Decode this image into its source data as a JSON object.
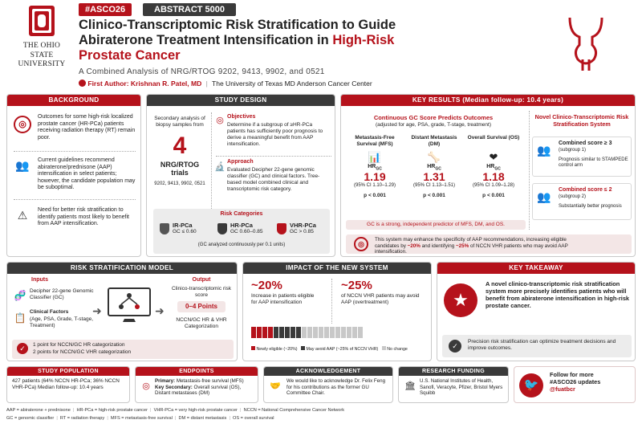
{
  "logo": {
    "line1": "THE OHIO STATE",
    "line2": "UNIVERSITY"
  },
  "tags": {
    "conference": "#ASCO26",
    "abstract": "ABSTRACT 5000"
  },
  "title": {
    "part1": "Clinico-Transcriptomic Risk Stratification to Guide",
    "part2a": "Abiraterone Treatment Intensification in ",
    "part2b": "High-Risk",
    "part3": "Prostate Cancer"
  },
  "subtitle": "A Combined Analysis of NRG/RTOG 9202, 9413, 9902, and 0521",
  "author": {
    "label": "First Author:",
    "name": "Krishnan R. Patel, MD",
    "affiliation": "The University of Texas MD Anderson Cancer Center"
  },
  "background": {
    "header": "BACKGROUND",
    "items": [
      "Outcomes for some high-risk localized prostate cancer (HR-PCa) patients receiving radiation therapy (RT) remain poor.",
      "Current guidelines recommend abiraterone/prednisone (AAP) intensification in select patients; however, the candidate population may be suboptimal.",
      "Need for better risk stratification to identify patients most likely to benefit from AAP intensification."
    ]
  },
  "study_design": {
    "header": "STUDY DESIGN",
    "intro": "Secondary analysis of biopsy samples from",
    "big_number": "4",
    "trials_label": "NRG/RTOG trials",
    "trials": "9202, 9413, 9902, 0521",
    "objectives_title": "Objectives",
    "objectives_text": "Determine if a subgroup of ≥HR-PCa patients has sufficiently poor prognosis to derive a meaningful benefit from AAP intensification.",
    "approach_title": "Approach",
    "approach_text": "Evaluated Decipher 22-gene genomic classifier (GC) and clinical factors. Tree-based model combined clinical and transcriptomic risk category.",
    "risk_title": "Risk Categories",
    "risk": [
      {
        "label": "IR-PCa",
        "range": "GC ≤ 0.60"
      },
      {
        "label": "HR-PCa",
        "range": "GC 0.60–0.85"
      },
      {
        "label": "VHR-PCa",
        "range": "GC > 0.85"
      }
    ],
    "risk_note": "(GC analyzed continuously per 0.1 units)"
  },
  "key_results": {
    "header": "KEY RESULTS (Median follow-up: 10.4 years)",
    "gc_title": "Continuous GC Score Predicts Outcomes",
    "gc_subtitle": "(adjusted for age, PSA, grade, T-stage, treatment)",
    "endpoints": [
      {
        "name": "Metastasis-Free Survival (MFS)",
        "hr": "1.19",
        "ci": "(95% CI 1.10–1.29)",
        "p": "p < 0.001"
      },
      {
        "name": "Distant Metastasis (DM)",
        "hr": "1.31",
        "ci": "(95% CI 1.13–1.51)",
        "p": "p < 0.001"
      },
      {
        "name": "Overall Survival (OS)",
        "hr": "1.18",
        "ci": "(95% CI 1.09–1.28)",
        "p": "p < 0.001"
      }
    ],
    "hr_label": "HR",
    "hr_sub": "GC",
    "gc_note": "GC is a strong, independent predictor of MFS, DM, and OS.",
    "novel_title": "Novel Clinico-Transcriptomic Risk Stratification System",
    "subgroup1_title": "Combined score ≥ 3",
    "subgroup1_sub": "(subgroup 1)",
    "subgroup1_text": "Prognosis similar to STAMPEDE control arm",
    "subgroup2_title": "Combined score ≤ 2",
    "subgroup2_sub": "(subgroup 2)",
    "subgroup2_text": "Substantially better prognosis",
    "system_note_a": "This system may enhance the specificity of AAP recommendations, increasing eligible candidates by ",
    "system_note_b": "~20%",
    "system_note_c": " and identifying ",
    "system_note_d": "~25%",
    "system_note_e": " of NCCN VHR patients who may avoid AAP intensification."
  },
  "risk_model": {
    "header": "RISK STRATIFICATION MODEL",
    "inputs_title": "Inputs",
    "input1": "Decipher 22-gene Genomic Classifier (GC)",
    "input2_title": "Clinical Factors",
    "input2_text": "(Age, PSA, Grade, T-stage, Treatment)",
    "output_title": "Output",
    "output_label": "Clinico-transcriptomic risk score",
    "points": "0–4 Points",
    "categorization": "NCCN/GC HR & VHR Categorization",
    "rule1": "1 point for NCCN/GC HR categorization",
    "rule2": "2 points for NCCN/GC VHR categorization"
  },
  "impact": {
    "header": "IMPACT OF THE NEW SYSTEM",
    "stat1": "~20%",
    "stat1_text": "Increase in patients eligible for AAP intensification",
    "stat2": "~25%",
    "stat2_text": "of NCCN VHR patients may avoid AAP (overtreatment)",
    "legend": [
      "Newly eligible (~20%)",
      "May avoid AAP (~25% of NCCN VHR)",
      "No change"
    ],
    "counts": {
      "newly": 4,
      "avoid": 5,
      "nochange": 11
    }
  },
  "takeaway": {
    "header": "KEY TAKEAWAY",
    "main": "A novel clinico-transcriptomic risk stratification system more precisely identifies patients who will benefit from abiraterone intensification in high-risk prostate cancer.",
    "sub": "Precision risk stratification can optimize treatment decisions and improve outcomes."
  },
  "population": {
    "header": "STUDY POPULATION",
    "text": "427 patients (64% NCCN HR-PCa; 36% NCCN VHR-PCa) Median follow-up: 10.4 years"
  },
  "endpoints": {
    "header": "ENDPOINTS",
    "primary_label": "Primary:",
    "primary": " Metastasis-free survival (MFS)",
    "secondary_label": "Key Secondary:",
    "secondary": " Overall survival (OS), Distant metastases (DM)"
  },
  "ack": {
    "header": "ACKNOWLEDGEMENT",
    "text": "We would like to acknowledge Dr. Felix Feng for his contributions as the former GU Committee Chair."
  },
  "funding": {
    "header": "RESEARCH FUNDING",
    "text": "U.S. National Institutes of Health, Sanofi, Veracyte, Pfizer, Bristol Myers Squibb"
  },
  "social": {
    "line1": "Follow for more",
    "line2": "#ASCO26 updates",
    "handle": "@fuatbcr"
  },
  "abbreviations": [
    "AAP = abiraterone + prednisone",
    "HR-PCa = high-risk prostate cancer",
    "VHR-PCa = very high-risk prostate cancer",
    "NCCN = National Comprehensive Cancer Network",
    "GC = genomic classifier",
    "RT = radiation therapy",
    "MFS = metastasis-free survival",
    "DM = distant metastasis",
    "OS = overall survival"
  ],
  "colors": {
    "accent": "#b5121b",
    "dark": "#3a3a3a"
  }
}
